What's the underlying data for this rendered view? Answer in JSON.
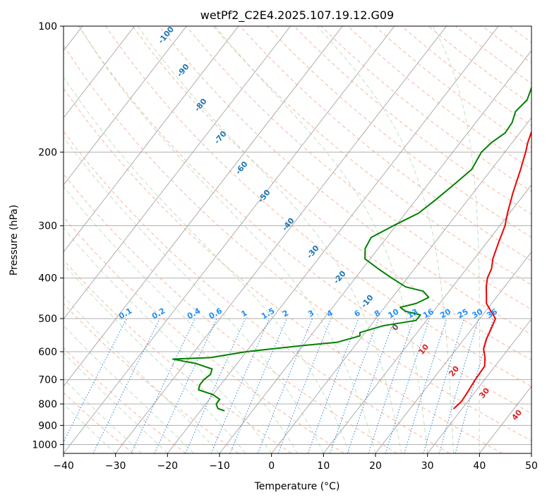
{
  "chart_data": {
    "type": "line",
    "title": "wetPf2_C2E4.2025.107.19.12.G09",
    "xlabel": "Temperature (°C)",
    "ylabel": "Pressure (hPa)",
    "xlim": [
      -40,
      50
    ],
    "ylim": [
      1050,
      100
    ],
    "y_scale": "log",
    "grid": true,
    "x_ticks": [
      -40,
      -30,
      -20,
      -10,
      0,
      10,
      20,
      30,
      40,
      50
    ],
    "y_ticks": [
      100,
      200,
      300,
      400,
      500,
      600,
      700,
      800,
      900,
      1000
    ],
    "series": [
      {
        "name": "",
        "color": "#ee0000",
        "points": [
          [
            100,
            -1.5
          ],
          [
            110,
            -0.8
          ],
          [
            120,
            -0.5
          ],
          [
            130,
            -0.8
          ],
          [
            140,
            0.0
          ],
          [
            150,
            0.3
          ],
          [
            160,
            1.0
          ],
          [
            170,
            1.7
          ],
          [
            180,
            2.2
          ],
          [
            190,
            3.0
          ],
          [
            200,
            4.0
          ],
          [
            220,
            5.6
          ],
          [
            250,
            7.6
          ],
          [
            280,
            9.6
          ],
          [
            300,
            11.0
          ],
          [
            330,
            12.3
          ],
          [
            360,
            13.6
          ],
          [
            380,
            14.8
          ],
          [
            400,
            15.4
          ],
          [
            420,
            16.5
          ],
          [
            440,
            17.8
          ],
          [
            460,
            19.0
          ],
          [
            480,
            21.0
          ],
          [
            500,
            23.0
          ],
          [
            530,
            23.7
          ],
          [
            560,
            24.3
          ],
          [
            590,
            25.2
          ],
          [
            620,
            26.8
          ],
          [
            650,
            28.0
          ],
          [
            700,
            28.2
          ],
          [
            750,
            28.6
          ],
          [
            790,
            28.8
          ],
          [
            820,
            28.4
          ]
        ]
      },
      {
        "name": "",
        "color": "#008000",
        "points": [
          [
            100,
            -3.0
          ],
          [
            105,
            -3.5
          ],
          [
            110,
            -4.5
          ],
          [
            120,
            -5.7
          ],
          [
            130,
            -5.5
          ],
          [
            135,
            -4.8
          ],
          [
            140,
            -4.5
          ],
          [
            150,
            -3.5
          ],
          [
            160,
            -4.0
          ],
          [
            170,
            -3.0
          ],
          [
            180,
            -2.8
          ],
          [
            190,
            -4.0
          ],
          [
            200,
            -4.5
          ],
          [
            220,
            -3.8
          ],
          [
            240,
            -5.0
          ],
          [
            260,
            -6.2
          ],
          [
            280,
            -7.5
          ],
          [
            300,
            -10.5
          ],
          [
            320,
            -13.0
          ],
          [
            340,
            -12.5
          ],
          [
            360,
            -11.0
          ],
          [
            380,
            -7.0
          ],
          [
            400,
            -3.0
          ],
          [
            420,
            1.0
          ],
          [
            430,
            5.0
          ],
          [
            445,
            7.0
          ],
          [
            460,
            5.5
          ],
          [
            470,
            3.0
          ],
          [
            480,
            4.5
          ],
          [
            490,
            8.0
          ],
          [
            505,
            8.0
          ],
          [
            520,
            2.5
          ],
          [
            540,
            -1.0
          ],
          [
            550,
            -0.5
          ],
          [
            570,
            -4.0
          ],
          [
            580,
            -10.0
          ],
          [
            600,
            -20.0
          ],
          [
            620,
            -26.0
          ],
          [
            625,
            -33.0
          ],
          [
            640,
            -28.0
          ],
          [
            660,
            -24.0
          ],
          [
            680,
            -23.5
          ],
          [
            700,
            -24.0
          ],
          [
            720,
            -24.0
          ],
          [
            740,
            -23.5
          ],
          [
            760,
            -20.0
          ],
          [
            780,
            -18.0
          ],
          [
            800,
            -18.0
          ],
          [
            820,
            -17.0
          ],
          [
            830,
            -15.5
          ]
        ]
      }
    ],
    "isotherm_labels": [
      "-100",
      "-90",
      "-80",
      "-70",
      "-60",
      "-50",
      "-40",
      "-30",
      "-20",
      "-10"
    ],
    "warm_isotherm_labels": [
      "0",
      "10",
      "20",
      "30",
      "40"
    ],
    "mixing_ratio_labels": [
      "0.1",
      "0.2",
      "0.4",
      "0.6",
      "1",
      "1.5",
      "2",
      "3",
      "4",
      "6",
      "8",
      "10",
      "13",
      "16",
      "20",
      "25",
      "30",
      "36"
    ]
  }
}
